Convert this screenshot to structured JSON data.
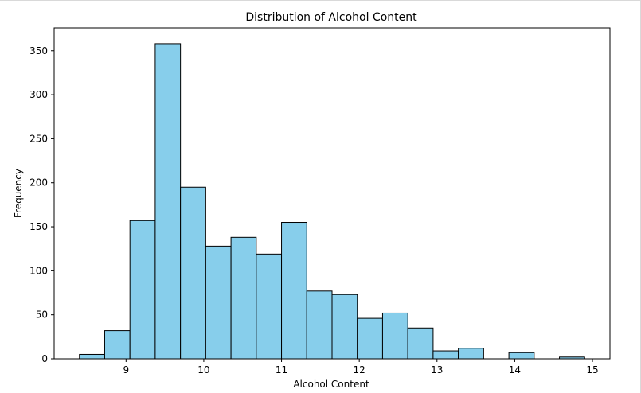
{
  "chart_data": {
    "type": "bar",
    "title": "Distribution of Alcohol Content",
    "xlabel": "Alcohol Content",
    "ylabel": "Frequency",
    "xlim": [
      8.075,
      15.225
    ],
    "ylim": [
      0,
      376
    ],
    "xticks": [
      9,
      10,
      11,
      12,
      13,
      14,
      15
    ],
    "yticks": [
      0,
      50,
      100,
      150,
      200,
      250,
      300,
      350
    ],
    "bin_edges": [
      8.4,
      8.725,
      9.05,
      9.375,
      9.7,
      10.025,
      10.35,
      10.675,
      11.0,
      11.325,
      11.65,
      11.975,
      12.3,
      12.625,
      12.95,
      13.275,
      13.6,
      13.925,
      14.25,
      14.575,
      14.9
    ],
    "values": [
      5,
      32,
      157,
      358,
      195,
      128,
      138,
      119,
      155,
      77,
      73,
      46,
      52,
      35,
      9,
      12,
      0,
      7,
      0,
      2
    ],
    "bar_color": "#87ceeb",
    "edge_color": "#000000",
    "grid": false
  }
}
